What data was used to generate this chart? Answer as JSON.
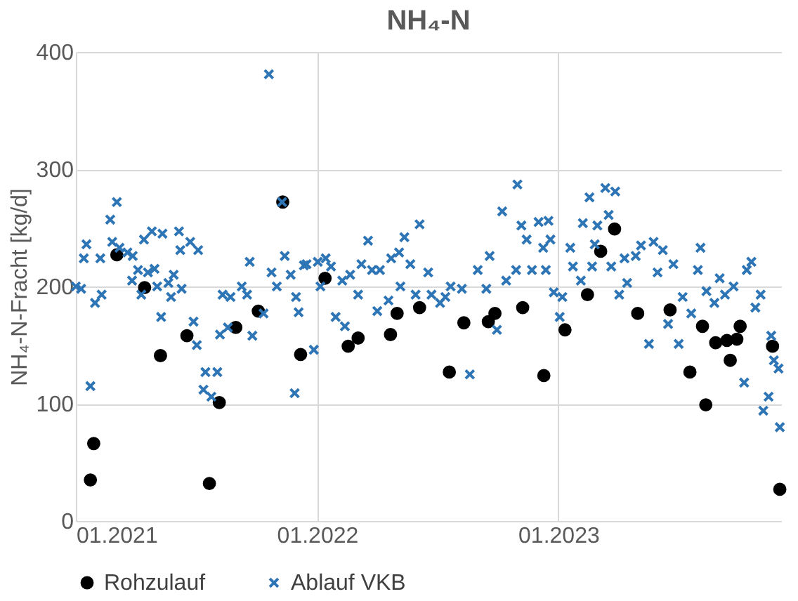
{
  "chart_data": {
    "type": "scatter",
    "title": "NH₄-N",
    "ylabel": "NH₄-N-Fracht [kg/d]",
    "xlim": [
      "2021-01-01",
      "2023-12-04"
    ],
    "xticks": [
      {
        "value": "2021-01-01",
        "label": "01.2021"
      },
      {
        "value": "2022-01-01",
        "label": "01.2022"
      },
      {
        "value": "2023-01-01",
        "label": "01.2023"
      }
    ],
    "ylim": [
      0,
      400
    ],
    "yticks": [
      0,
      100,
      200,
      300,
      400
    ],
    "grid": true,
    "legend": "bottom",
    "series": [
      {
        "name": "Rohzulauf",
        "color": "#000000",
        "marker": "circle",
        "x": [
          "2021-01-23",
          "2021-01-28",
          "2021-03-04",
          "2021-04-15",
          "2021-05-09",
          "2021-06-18",
          "2021-07-22",
          "2021-08-06",
          "2021-08-31",
          "2021-10-04",
          "2021-11-10",
          "2021-12-07",
          "2022-01-13",
          "2022-02-17",
          "2022-03-04",
          "2022-04-22",
          "2022-05-02",
          "2022-06-05",
          "2022-07-20",
          "2022-08-11",
          "2022-09-17",
          "2022-09-27",
          "2022-11-08",
          "2022-12-10",
          "2023-01-11",
          "2023-02-14",
          "2023-03-06",
          "2023-03-27",
          "2023-05-01",
          "2023-06-19",
          "2023-07-19",
          "2023-08-07",
          "2023-08-12",
          "2023-08-27",
          "2023-09-13",
          "2023-09-18",
          "2023-09-28",
          "2023-10-03",
          "2023-11-21",
          "2023-12-02"
        ],
        "values": [
          35,
          66,
          227,
          199,
          141,
          158,
          32,
          101,
          165,
          179,
          272,
          142,
          207,
          149,
          156,
          159,
          177,
          182,
          127,
          169,
          170,
          177,
          182,
          124,
          163,
          193,
          230,
          249,
          177,
          180,
          127,
          166,
          99,
          152,
          154,
          137,
          155,
          166,
          149,
          27
        ]
      },
      {
        "name": "Ablauf VKB",
        "color": "#2e75b6",
        "marker": "cross",
        "x": [
          "2021-01-01",
          "2021-01-09",
          "2021-01-13",
          "2021-01-17",
          "2021-01-23",
          "2021-01-30",
          "2021-02-09",
          "2021-02-07",
          "2021-02-22",
          "2021-03-04",
          "2021-02-25",
          "2021-03-08",
          "2021-03-20",
          "2021-03-28",
          "2021-04-05",
          "2021-04-14",
          "2021-04-20",
          "2021-04-26",
          "2021-04-30",
          "2021-03-27",
          "2021-04-10",
          "2021-05-04",
          "2021-05-12",
          "2021-05-10",
          "2021-05-21",
          "2021-05-25",
          "2021-05-29",
          "2021-06-06",
          "2021-06-08",
          "2021-06-10",
          "2021-06-23",
          "2021-07-05",
          "2021-06-28",
          "2021-07-03",
          "2021-07-16",
          "2021-08-03",
          "2021-07-13",
          "2021-07-25",
          "2021-08-11",
          "2021-08-23",
          "2021-08-07",
          "2021-08-19",
          "2021-09-09",
          "2021-09-17",
          "2021-09-21",
          "2021-09-25",
          "2021-10-12",
          "2021-10-20",
          "2021-10-24",
          "2021-11-01",
          "2021-11-09",
          "2021-11-13",
          "2021-11-22",
          "2021-11-28",
          "2021-12-04",
          "2021-11-30",
          "2021-12-12",
          "2021-12-27",
          "2021-12-16",
          "2022-01-02",
          "2022-01-14",
          "2022-01-22",
          "2022-01-06",
          "2022-01-29",
          "2022-02-12",
          "2022-02-08",
          "2022-02-20",
          "2022-03-04",
          "2022-03-09",
          "2022-03-19",
          "2022-03-25",
          "2022-04-06",
          "2022-04-02",
          "2022-04-19",
          "2022-04-23",
          "2022-05-05",
          "2022-05-13",
          "2022-05-07",
          "2022-05-22",
          "2022-06-05",
          "2022-05-30",
          "2022-06-18",
          "2022-06-23",
          "2022-07-06",
          "2022-07-14",
          "2022-07-22",
          "2022-08-08",
          "2022-08-20",
          "2022-09-01",
          "2022-09-14",
          "2022-09-19",
          "2022-09-30",
          "2022-10-08",
          "2022-10-14",
          "2022-10-31",
          "2022-11-06",
          "2022-10-29",
          "2022-11-14",
          "2022-11-22",
          "2022-12-02",
          "2022-12-09",
          "2022-12-17",
          "2022-12-20",
          "2022-12-13",
          "2022-12-25",
          "2023-01-07",
          "2023-01-03",
          "2023-01-19",
          "2023-01-23",
          "2023-02-04",
          "2023-02-07",
          "2023-02-17",
          "2023-02-21",
          "2023-03-01",
          "2023-02-25",
          "2023-03-13",
          "2023-03-28",
          "2023-03-18",
          "2023-03-22",
          "2023-04-03",
          "2023-04-11",
          "2023-04-15",
          "2023-04-28",
          "2023-05-06",
          "2023-05-18",
          "2023-05-25",
          "2023-05-31",
          "2023-06-08",
          "2023-06-16",
          "2023-06-24",
          "2023-07-02",
          "2023-07-08",
          "2023-07-21",
          "2023-07-31",
          "2023-08-04",
          "2023-08-13",
          "2023-08-25",
          "2023-09-02",
          "2023-09-10",
          "2023-09-23",
          "2023-10-09",
          "2023-10-13",
          "2023-10-20",
          "2023-10-26",
          "2023-11-03",
          "2023-11-07",
          "2023-11-15",
          "2023-11-19",
          "2023-11-23",
          "2023-12-02",
          "2023-11-30"
        ],
        "values": [
          200,
          198,
          224,
          236,
          115,
          186,
          193,
          224,
          257,
          272,
          238,
          233,
          229,
          226,
          214,
          240,
          212,
          247,
          215,
          205,
          193,
          200,
          245,
          174,
          203,
          191,
          210,
          247,
          231,
          198,
          238,
          231,
          170,
          150,
          127,
          127,
          112,
          106,
          193,
          191,
          159,
          165,
          200,
          193,
          221,
          158,
          177,
          381,
          212,
          200,
          272,
          226,
          210,
          109,
          178,
          191,
          218,
          146,
          219,
          221,
          224,
          217,
          200,
          174,
          166,
          205,
          210,
          193,
          219,
          239,
          214,
          214,
          179,
          188,
          224,
          229,
          242,
          200,
          219,
          253,
          193,
          212,
          193,
          186,
          191,
          200,
          198,
          125,
          214,
          198,
          226,
          163,
          264,
          205,
          287,
          252,
          214,
          240,
          214,
          255,
          233,
          256,
          240,
          214,
          195,
          191,
          174,
          233,
          217,
          205,
          254,
          276,
          217,
          252,
          236,
          284,
          281,
          261,
          217,
          193,
          224,
          203,
          226,
          235,
          151,
          238,
          212,
          231,
          168,
          219,
          151,
          191,
          177,
          214,
          233,
          196,
          186,
          207,
          193,
          200,
          118,
          214,
          221,
          182,
          193,
          94,
          106,
          158,
          137,
          80,
          130
        ]
      }
    ]
  }
}
